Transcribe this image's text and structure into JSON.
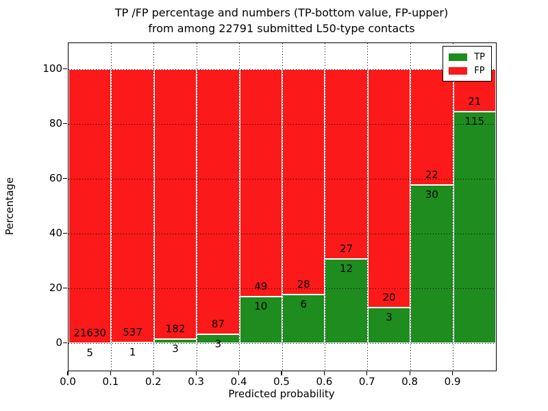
{
  "title": {
    "line1": "TP /FP percentage and numbers (TP-bottom value, FP-upper)",
    "line2": "from among 22791 submitted L50-type contacts"
  },
  "axes": {
    "xlabel": "Predicted probability",
    "ylabel": "Percentage",
    "x_ticks": [
      "0.0",
      "0.1",
      "0.2",
      "0.3",
      "0.4",
      "0.5",
      "0.6",
      "0.7",
      "0.8",
      "0.9"
    ],
    "y_ticks": [
      "0",
      "20",
      "40",
      "60",
      "80",
      "100"
    ]
  },
  "legend": {
    "items": [
      {
        "label": "TP",
        "color": "#1e8c1e"
      },
      {
        "label": "FP",
        "color": "#fb1919"
      }
    ]
  },
  "colors": {
    "tp": "#1e8c1e",
    "fp": "#fb1919",
    "grid": "#000000",
    "bar_edge": "#ffffff"
  },
  "chart_data": {
    "type": "bar",
    "stacked": true,
    "normalized_to_percent": true,
    "title": "TP /FP percentage and numbers (TP-bottom value, FP-upper) from among 22791 submitted L50-type contacts",
    "total_contacts": 22791,
    "xlabel": "Predicted probability",
    "ylabel": "Percentage",
    "xlim": [
      0.0,
      1.0
    ],
    "ylim": [
      -10,
      109.5
    ],
    "grid": true,
    "legend_position": "upper right",
    "bins": [
      [
        0.0,
        0.1
      ],
      [
        0.1,
        0.2
      ],
      [
        0.2,
        0.3
      ],
      [
        0.3,
        0.4
      ],
      [
        0.4,
        0.5
      ],
      [
        0.5,
        0.6
      ],
      [
        0.6,
        0.7
      ],
      [
        0.7,
        0.8
      ],
      [
        0.8,
        0.9
      ],
      [
        0.9,
        1.0
      ]
    ],
    "categories": [
      "0.0-0.1",
      "0.1-0.2",
      "0.2-0.3",
      "0.3-0.4",
      "0.4-0.5",
      "0.5-0.6",
      "0.6-0.7",
      "0.7-0.8",
      "0.8-0.9",
      "0.9-1.0"
    ],
    "series": [
      {
        "name": "TP",
        "counts": [
          5,
          1,
          3,
          3,
          10,
          6,
          12,
          3,
          30,
          115
        ]
      },
      {
        "name": "FP",
        "counts": [
          21630,
          537,
          182,
          87,
          49,
          28,
          27,
          20,
          22,
          21
        ]
      }
    ],
    "tp_percent": [
      0.02,
      0.19,
      1.62,
      3.33,
      16.95,
      17.65,
      30.77,
      13.04,
      57.69,
      84.56
    ],
    "fp_percent": [
      99.98,
      99.81,
      98.38,
      96.67,
      83.05,
      82.35,
      69.23,
      86.96,
      42.31,
      15.44
    ]
  }
}
